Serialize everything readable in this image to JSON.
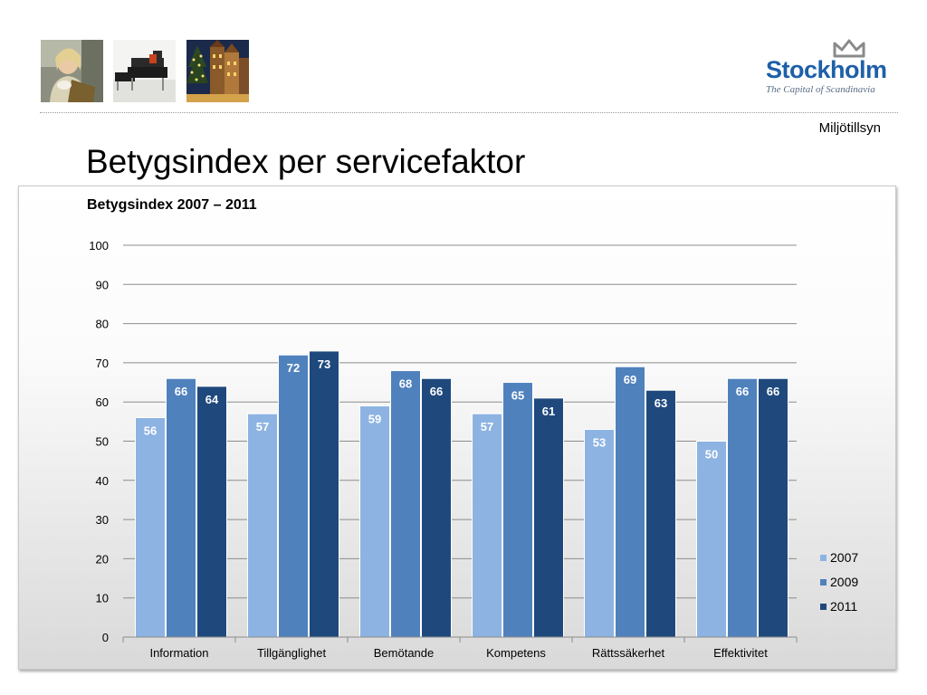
{
  "header": {
    "images": [
      {
        "name": "photo-woman",
        "alt": ""
      },
      {
        "name": "photo-chair",
        "alt": ""
      },
      {
        "name": "photo-old-town",
        "alt": ""
      }
    ],
    "logo": {
      "name": "Stockholm",
      "tagline": "The Capital of Scandinavia"
    },
    "section_label": "Miljötillsyn"
  },
  "page_title": "Betygsindex per servicefaktor",
  "colors": {
    "2007": "#8db3e2",
    "2009": "#4f81bd",
    "2011": "#1f497d",
    "logo_blue": "#1e5fa8"
  },
  "chart_data": {
    "type": "bar",
    "title": "Betygsindex 2007 – 2011",
    "xlabel": "",
    "ylabel": "",
    "ylim": [
      0,
      100
    ],
    "yticks": [
      0,
      10,
      20,
      30,
      40,
      50,
      60,
      70,
      80,
      90,
      100
    ],
    "grid": true,
    "legend_position": "right-bottom",
    "categories": [
      "Information",
      "Tillgänglighet",
      "Bemötande",
      "Kompetens",
      "Rättssäkerhet",
      "Effektivitet"
    ],
    "series": [
      {
        "name": "2007",
        "color": "#8db3e2",
        "values": [
          56,
          57,
          59,
          57,
          53,
          50
        ]
      },
      {
        "name": "2009",
        "color": "#4f81bd",
        "values": [
          66,
          72,
          68,
          65,
          69,
          66
        ]
      },
      {
        "name": "2011",
        "color": "#1f497d",
        "values": [
          64,
          73,
          66,
          61,
          63,
          66
        ]
      }
    ]
  }
}
